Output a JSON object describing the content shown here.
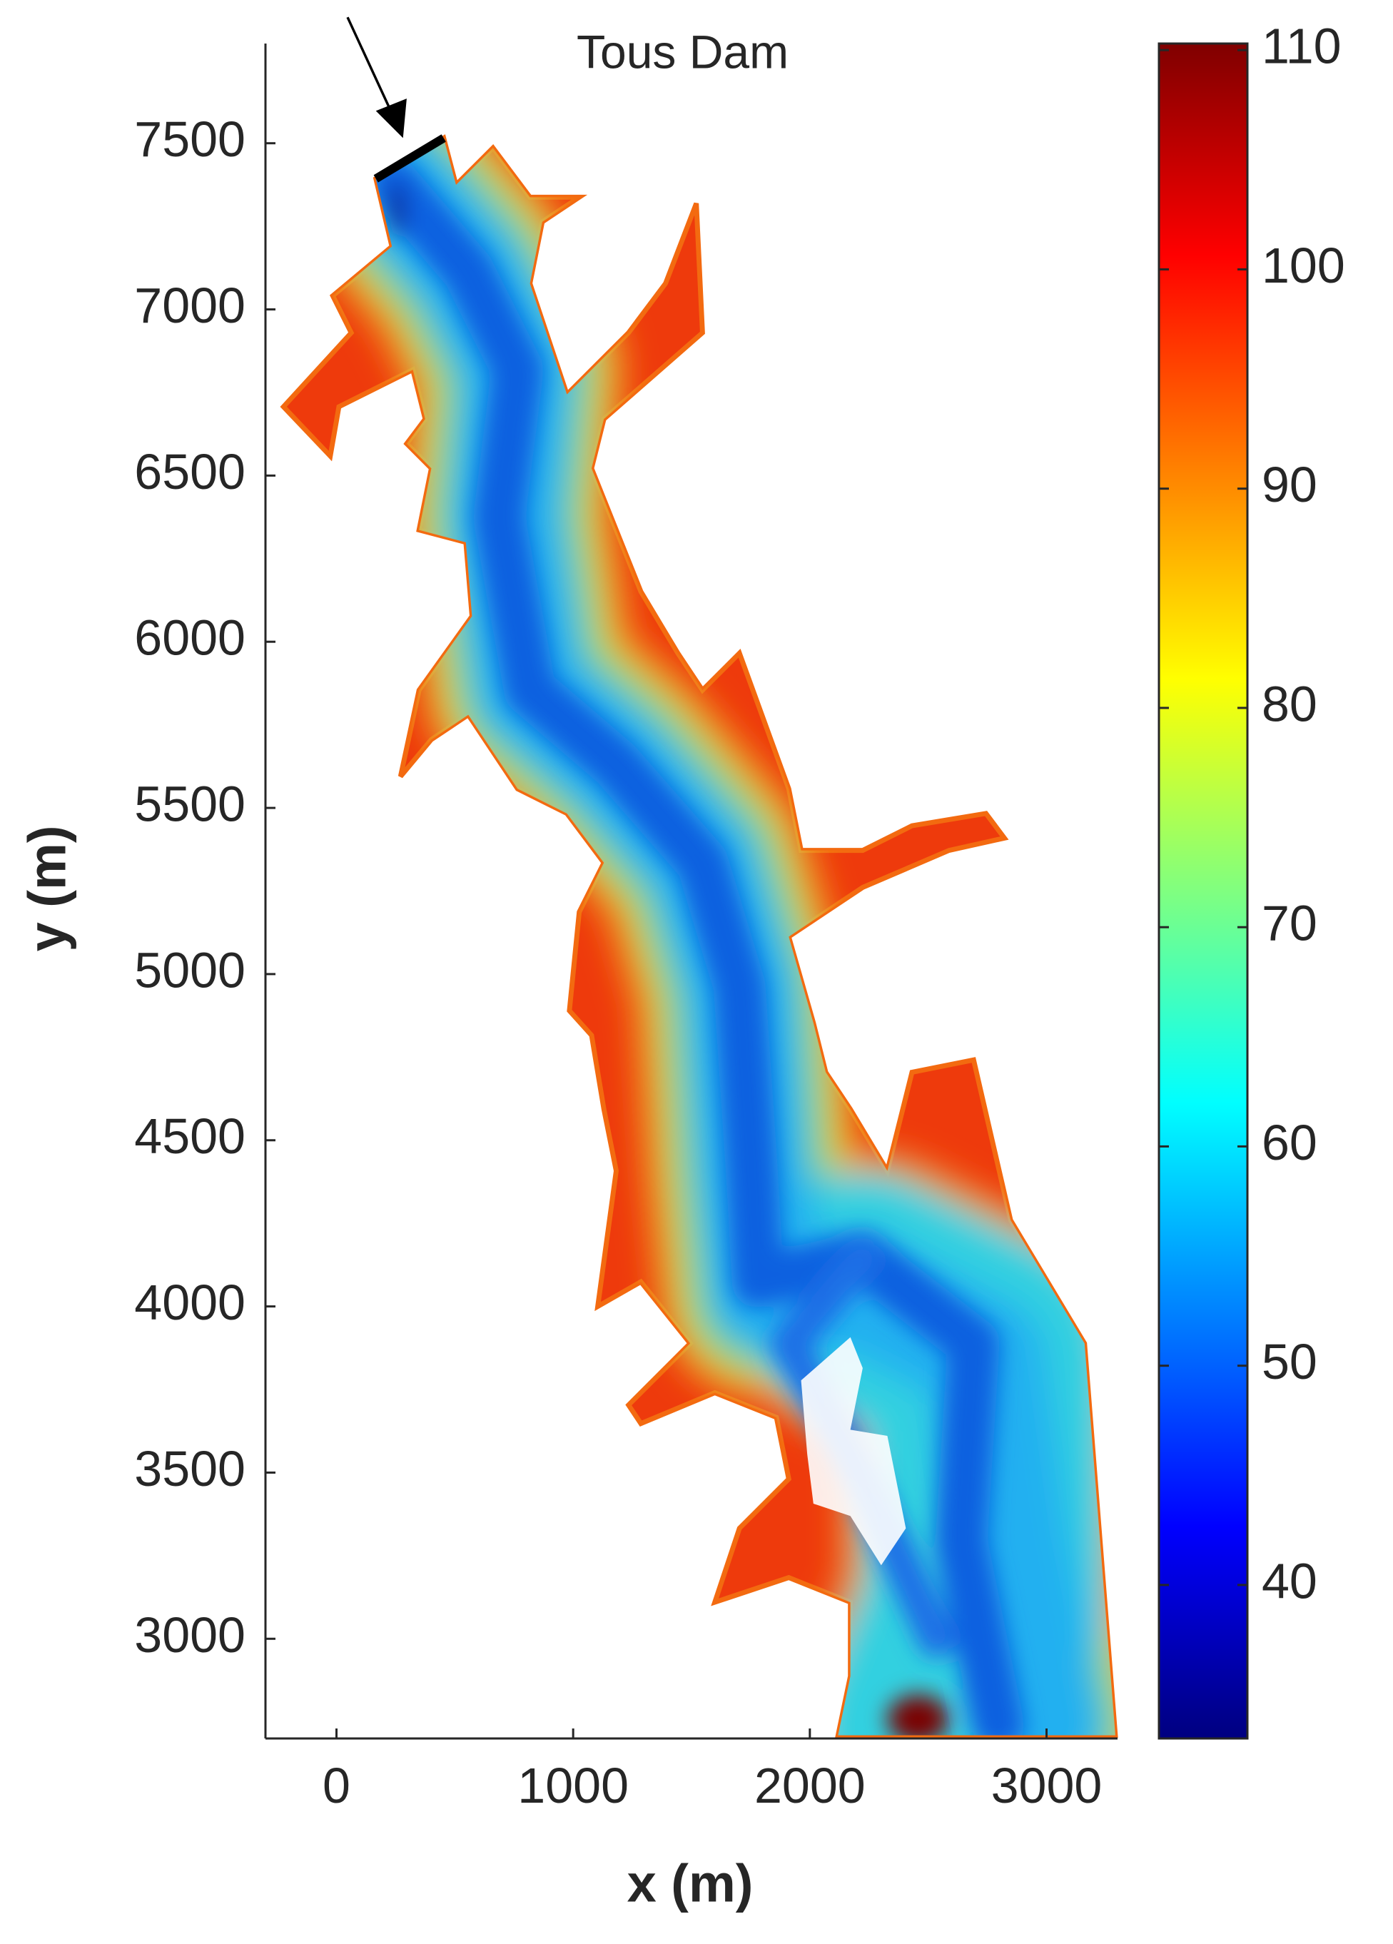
{
  "chart_data": {
    "type": "heatmap",
    "xlabel": "x (m)",
    "ylabel": "y (m)",
    "annotation": "Tous Dam",
    "xlim": [
      -300,
      3300
    ],
    "xticks": [
      0,
      1000,
      2000,
      3000
    ],
    "ylim": [
      2700,
      7800
    ],
    "yticks": [
      3000,
      3500,
      4000,
      4500,
      5000,
      5500,
      6000,
      6500,
      7000,
      7500
    ],
    "colormap": "jet",
    "clim": [
      33,
      110.3
    ],
    "cticks": [
      40,
      50,
      60,
      70,
      80,
      90,
      100,
      110
    ]
  }
}
